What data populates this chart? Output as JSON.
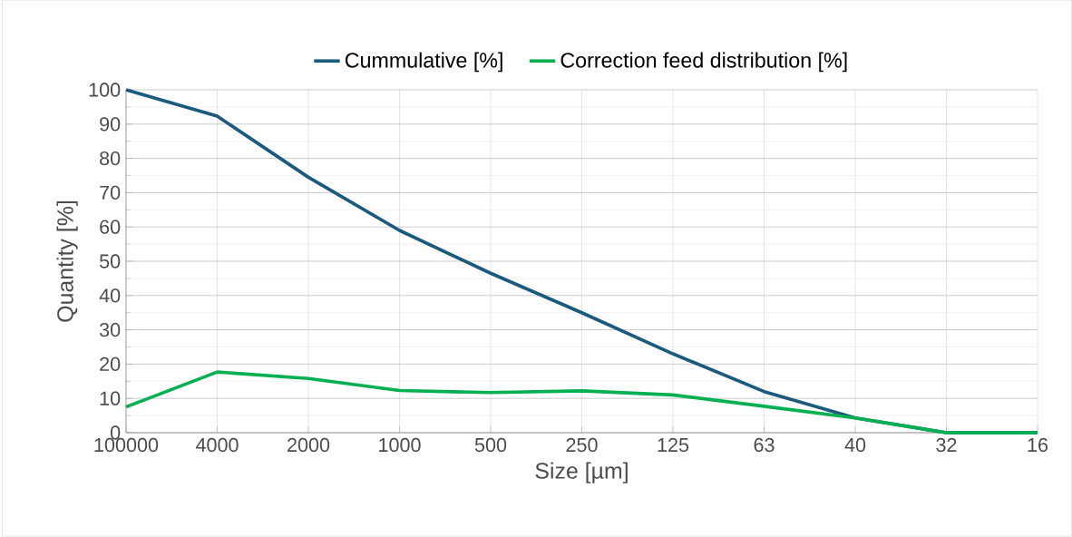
{
  "chart_data": {
    "type": "line",
    "xlabel": "Size [µm]",
    "ylabel": "Quantity [%]",
    "categories": [
      "100000",
      "4000",
      "2000",
      "1000",
      "500",
      "250",
      "125",
      "63",
      "40",
      "32",
      "16"
    ],
    "series": [
      {
        "name": "Cummulative [%]",
        "color": "#1b5a7f",
        "values": [
          100,
          92.3,
          74.5,
          59,
          46.5,
          35,
          23,
          12,
          4.3,
          0,
          0
        ]
      },
      {
        "name": "Correction feed distribution [%]",
        "color": "#00b050",
        "values": [
          7.5,
          17.7,
          15.8,
          12.3,
          11.7,
          12.2,
          11,
          7.7,
          4.3,
          0,
          0
        ]
      }
    ],
    "ylim": [
      0,
      100
    ],
    "yticks": [
      0,
      10,
      20,
      30,
      40,
      50,
      60,
      70,
      80,
      90,
      100
    ],
    "grid": true,
    "legend": "top",
    "marker": "none",
    "line_style": "solid"
  }
}
